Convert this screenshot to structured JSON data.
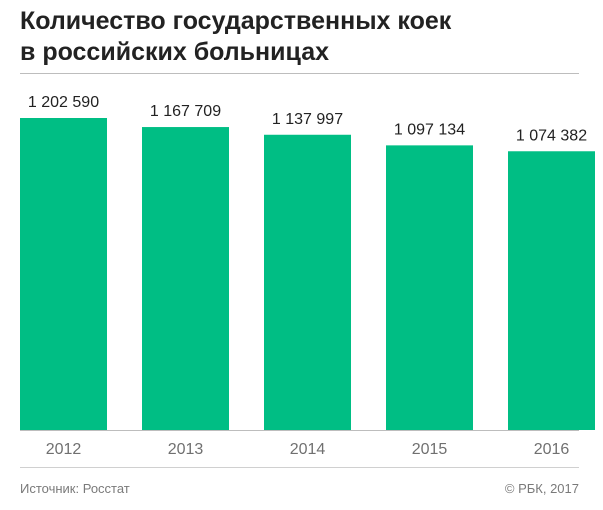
{
  "title_lines": [
    "Количество государственных коек",
    "в российских больницах"
  ],
  "source": "Источник: Росстат",
  "copyright": "© РБК, 2017",
  "colors": {
    "bar": "#00BE84",
    "value_label": "#222222",
    "axis_label": "#707070",
    "axis_line": "#bdbdbd"
  },
  "chart_data": {
    "type": "bar",
    "categories": [
      "2012",
      "2013",
      "2014",
      "2015",
      "2016"
    ],
    "values": [
      1202590,
      1167709,
      1137997,
      1097134,
      1074382
    ],
    "value_labels": [
      "1 202 590",
      "1 167 709",
      "1 137 997",
      "1 097 134",
      "1 074 382"
    ],
    "xlabel": "",
    "ylabel": "",
    "ylim": [
      0,
      1202590
    ],
    "grid": false,
    "legend": "none"
  }
}
